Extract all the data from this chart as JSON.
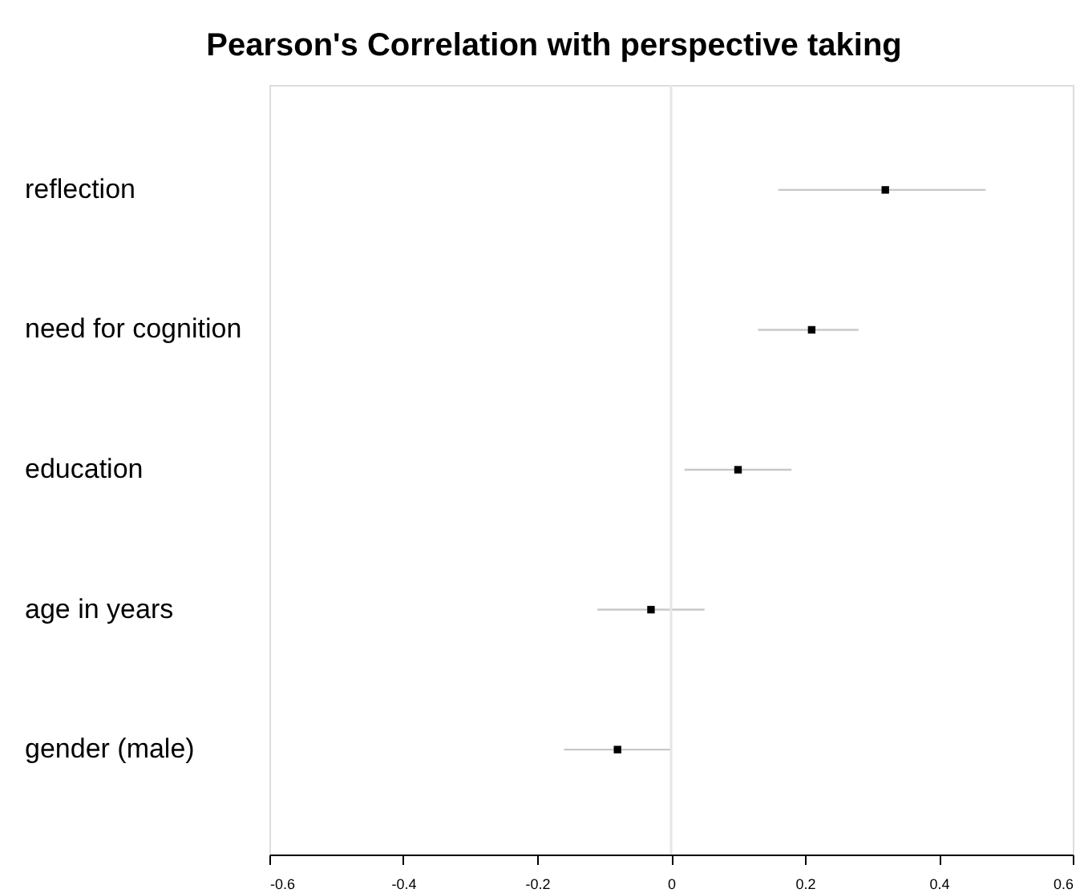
{
  "chart_data": {
    "type": "scatter",
    "orientation": "horizontal",
    "title": "Pearson's Correlation with perspective taking",
    "categories": [
      "reflection",
      "need for cognition",
      "education",
      "age in years",
      "gender (male)"
    ],
    "values": [
      0.32,
      0.21,
      0.1,
      -0.03,
      -0.08
    ],
    "errors": [
      [
        0.16,
        0.47
      ],
      [
        0.13,
        0.28
      ],
      [
        0.02,
        0.18
      ],
      [
        -0.11,
        0.05
      ],
      [
        -0.16,
        0.0
      ]
    ],
    "color": "#000000",
    "marker": "square",
    "xlim": [
      -0.6,
      0.6
    ],
    "xticks": [
      -0.6,
      -0.4,
      -0.2,
      0,
      0.2,
      0.4,
      0.6
    ],
    "ref_lines": [
      {
        "axis": "x",
        "value": 0,
        "color": "#e6e6e6"
      }
    ]
  }
}
